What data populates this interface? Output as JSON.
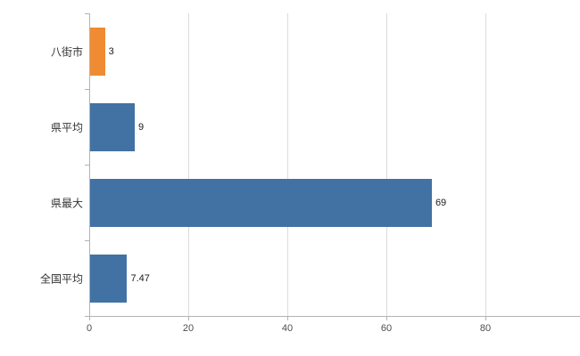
{
  "chart_data": {
    "type": "bar",
    "orientation": "horizontal",
    "title": "",
    "xlabel": "",
    "ylabel": "",
    "categories": [
      "八街市",
      "県平均",
      "県最大",
      "全国平均"
    ],
    "values": [
      3,
      9,
      69,
      7.47
    ],
    "value_labels": [
      "3",
      "9",
      "69",
      "7.47"
    ],
    "bar_colors": [
      "#ef8b33",
      "#4272a4",
      "#4272a4",
      "#4272a4"
    ],
    "xlim": [
      0,
      100
    ],
    "x_ticks": [
      0,
      20,
      40,
      60,
      80,
      100
    ],
    "x_tick_labels": [
      "0",
      "20",
      "40",
      "60",
      "80",
      ""
    ],
    "grid": true,
    "legend": false
  },
  "colors": {
    "bar_blue": "#4272a4",
    "bar_orange": "#ef8b33",
    "axis": "#b3b3b3",
    "grid": "#dcdcdc",
    "text": "#333333"
  }
}
